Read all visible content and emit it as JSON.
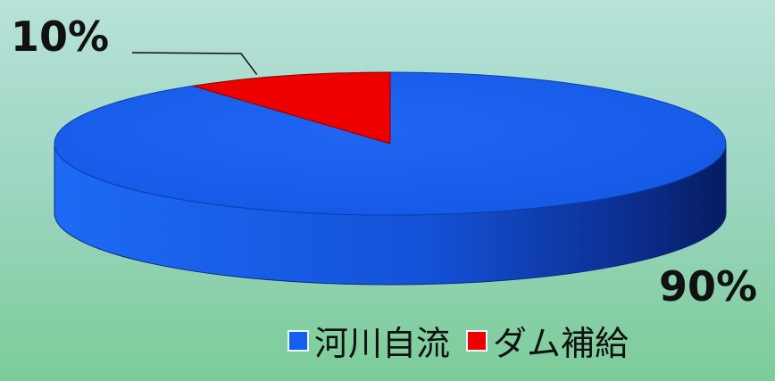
{
  "chart_data": {
    "type": "pie",
    "style": "3d",
    "categories": [
      "河川自流",
      "ダム補給"
    ],
    "values": [
      90,
      10
    ],
    "data_labels": [
      "90%",
      "10%"
    ],
    "colors": [
      "#1560ee",
      "#ee0000"
    ],
    "legend_position": "bottom-right",
    "title": ""
  }
}
